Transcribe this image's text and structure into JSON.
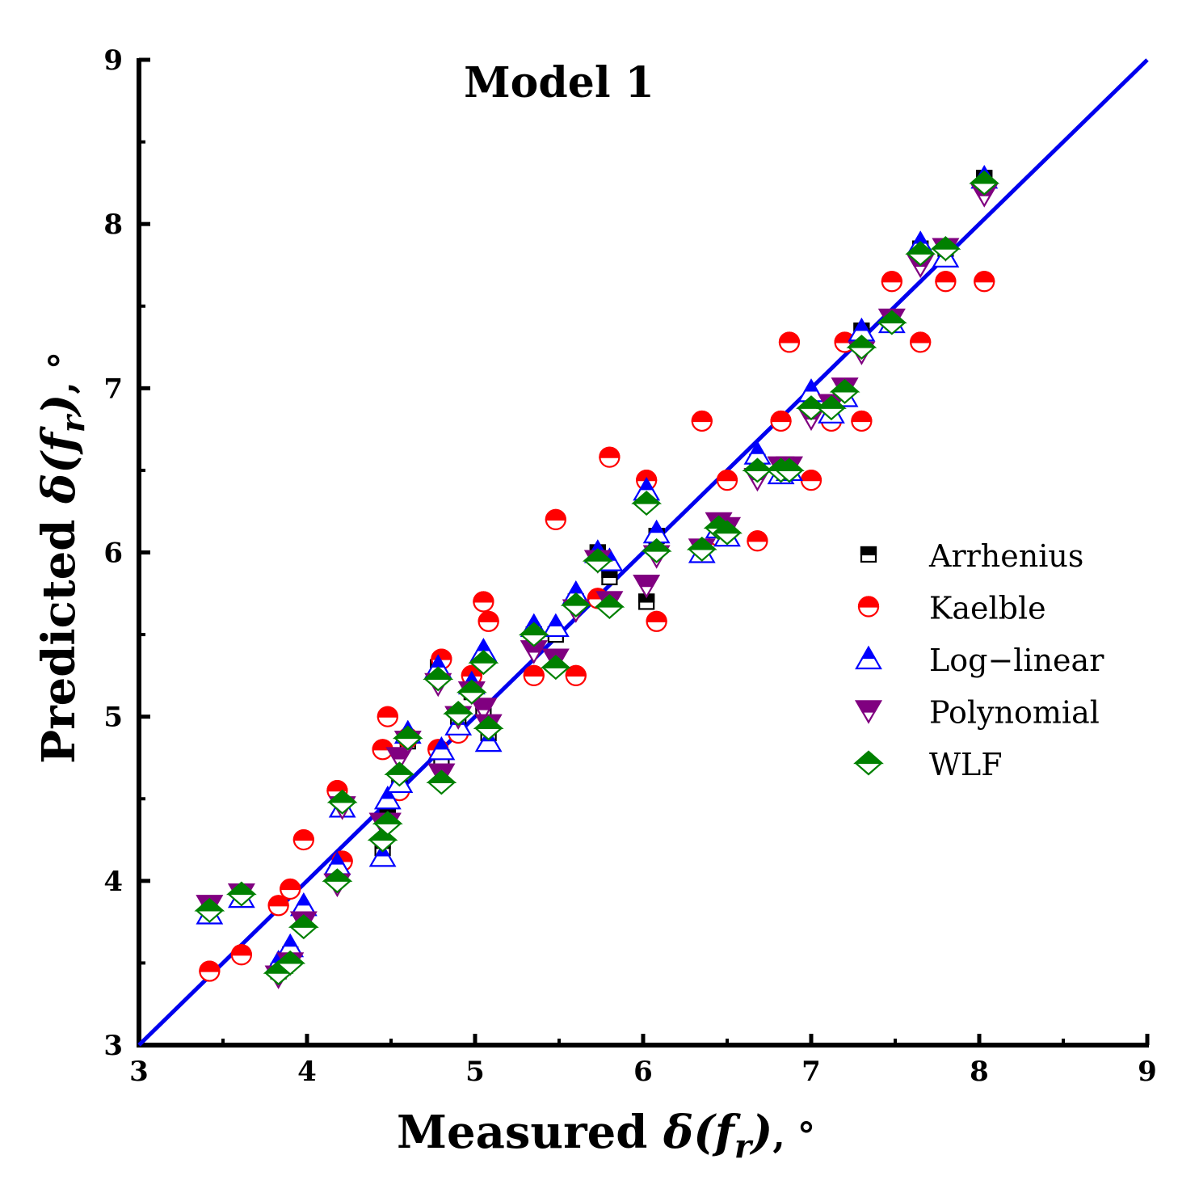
{
  "chart_data": {
    "type": "scatter",
    "title": "Model 1",
    "xlabel": {
      "prefix": "Measured ",
      "symbol": "δ(f",
      "sub": "r",
      "close": ")",
      "unit": ",  °"
    },
    "ylabel": {
      "prefix": "Predicted ",
      "symbol": "δ(f",
      "sub": "r",
      "close": ")",
      "unit": ",  °"
    },
    "xlim": [
      3,
      9
    ],
    "ylim": [
      3,
      9
    ],
    "xticks": [
      "3",
      "4",
      "5",
      "6",
      "7",
      "8",
      "9"
    ],
    "yticks": [
      "3",
      "4",
      "5",
      "6",
      "7",
      "8",
      "9"
    ],
    "legend_position": "right",
    "reference_line": {
      "from": [
        3,
        3
      ],
      "to": [
        9,
        9
      ],
      "color": "#0000ee"
    },
    "colors": {
      "Arrhenius": "#000000",
      "Kaelble": "#ff0000",
      "Log-linear": "#0000ff",
      "Polynomial": "#800080",
      "WLF": "#008000"
    },
    "measured": [
      3.42,
      3.61,
      3.83,
      3.9,
      3.98,
      4.18,
      4.21,
      4.45,
      4.48,
      4.55,
      4.6,
      4.78,
      4.8,
      4.9,
      4.98,
      5.05,
      5.08,
      5.35,
      5.48,
      5.6,
      5.73,
      5.8,
      6.02,
      6.08,
      6.35,
      6.45,
      6.5,
      6.68,
      6.82,
      6.87,
      7.0,
      7.12,
      7.2,
      7.3,
      7.48,
      7.65,
      7.8,
      8.03
    ],
    "series": [
      {
        "name": "Arrhenius",
        "marker": "square",
        "values": [
          3.82,
          3.9,
          3.45,
          3.55,
          3.75,
          4.05,
          4.45,
          4.2,
          4.4,
          4.6,
          4.85,
          5.3,
          4.75,
          5.0,
          5.15,
          5.05,
          4.9,
          5.5,
          5.5,
          5.7,
          6.0,
          5.85,
          5.7,
          6.1,
          6.0,
          6.1,
          6.12,
          6.55,
          6.5,
          6.5,
          6.9,
          6.85,
          7.0,
          7.35,
          7.4,
          7.85,
          7.85,
          8.28
        ]
      },
      {
        "name": "Kaelble",
        "marker": "circle",
        "values": [
          3.45,
          3.55,
          3.85,
          3.95,
          4.25,
          4.55,
          4.12,
          4.8,
          5.0,
          4.55,
          4.87,
          4.8,
          5.35,
          4.9,
          5.25,
          5.7,
          5.58,
          5.25,
          6.2,
          5.25,
          5.72,
          6.58,
          6.44,
          5.58,
          6.8,
          6.1,
          6.44,
          6.07,
          6.8,
          7.28,
          6.44,
          6.8,
          7.28,
          6.8,
          7.65,
          7.28,
          7.65,
          7.65
        ]
      },
      {
        "name": "Log-linear",
        "marker": "triangle-up",
        "values": [
          3.8,
          3.9,
          3.5,
          3.6,
          3.85,
          4.1,
          4.45,
          4.15,
          4.5,
          4.6,
          4.9,
          5.3,
          4.8,
          4.95,
          5.2,
          5.4,
          4.85,
          5.55,
          5.55,
          5.75,
          6.0,
          5.95,
          6.38,
          6.12,
          6.0,
          6.15,
          6.1,
          6.6,
          6.48,
          6.5,
          6.98,
          6.85,
          6.95,
          7.35,
          7.4,
          7.88,
          7.8,
          8.28
        ]
      },
      {
        "name": "Polynomial",
        "marker": "triangle-down",
        "values": [
          3.85,
          3.92,
          3.42,
          3.5,
          3.75,
          3.98,
          4.45,
          4.35,
          4.35,
          4.75,
          4.85,
          5.2,
          4.65,
          5.0,
          5.15,
          5.05,
          4.95,
          5.4,
          5.35,
          5.65,
          5.95,
          5.7,
          5.8,
          5.98,
          6.02,
          6.18,
          6.15,
          6.45,
          6.52,
          6.52,
          6.82,
          6.9,
          7.0,
          7.22,
          7.42,
          7.75,
          7.85,
          8.18
        ]
      },
      {
        "name": "WLF",
        "marker": "diamond",
        "values": [
          3.82,
          3.92,
          3.44,
          3.5,
          3.72,
          4.0,
          4.48,
          4.25,
          4.35,
          4.65,
          4.87,
          5.23,
          4.6,
          5.02,
          5.15,
          5.33,
          4.93,
          5.5,
          5.3,
          5.68,
          5.95,
          5.67,
          6.3,
          6.01,
          6.02,
          6.15,
          6.12,
          6.5,
          6.5,
          6.5,
          6.88,
          6.88,
          6.98,
          7.25,
          7.4,
          7.82,
          7.85,
          8.25
        ]
      }
    ]
  }
}
